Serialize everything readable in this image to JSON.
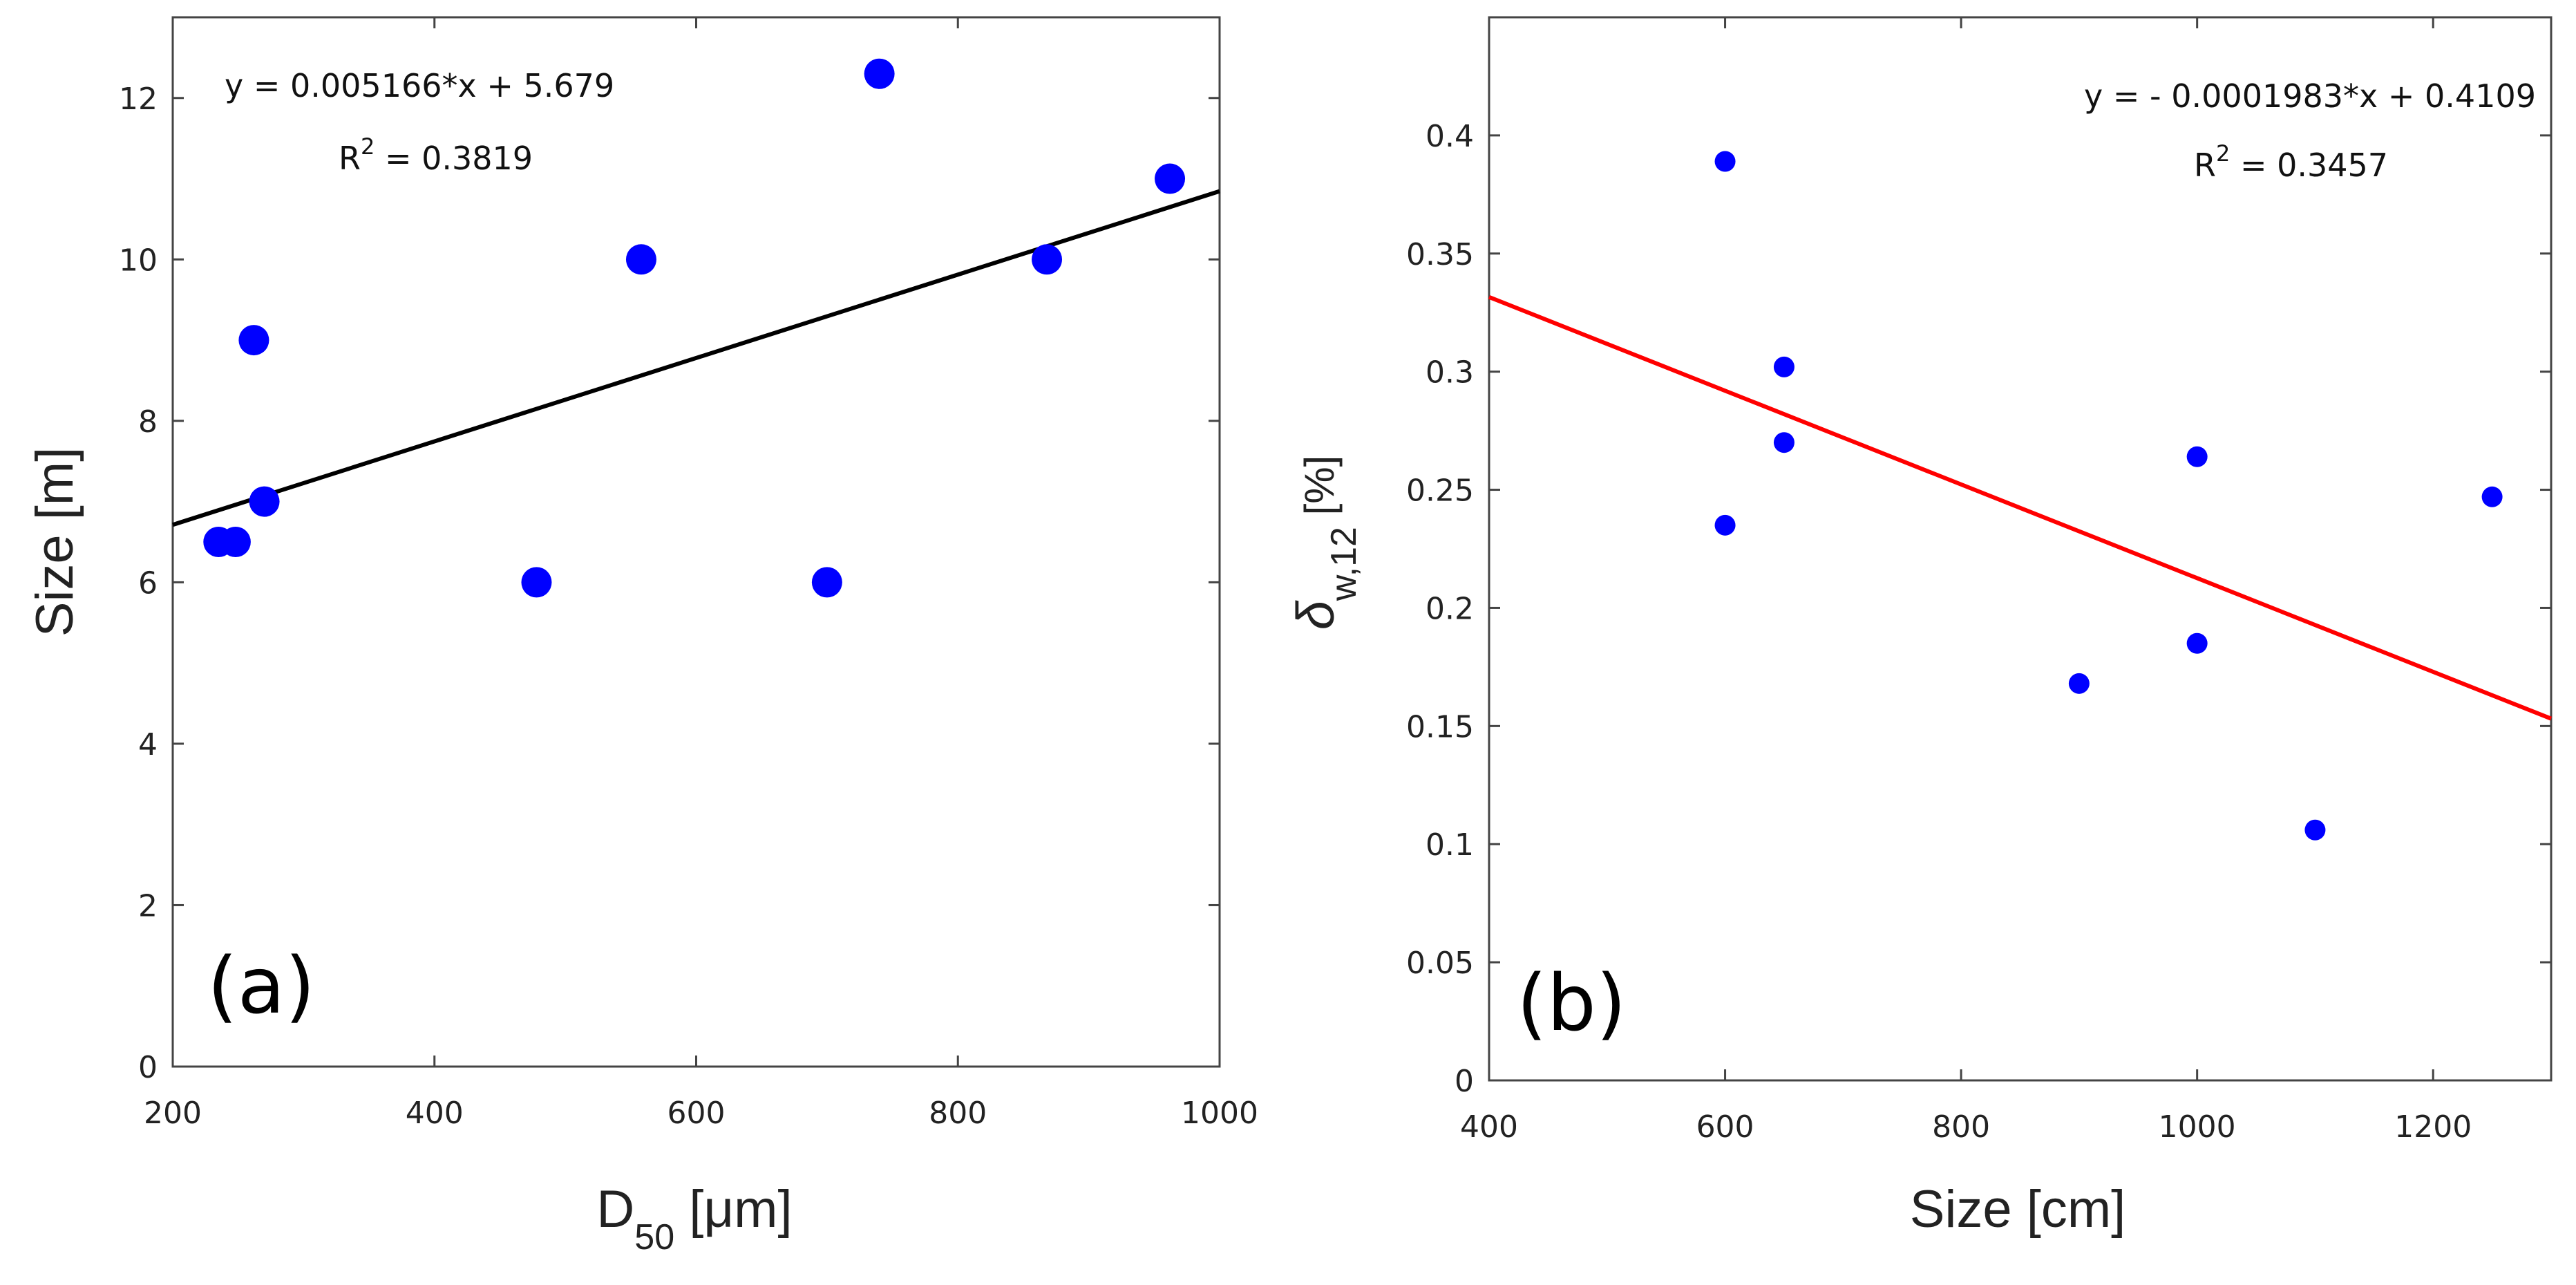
{
  "chart_data": [
    {
      "type": "scatter",
      "panel_label": "(a)",
      "xlabel": "D",
      "xlabel_sub": "50",
      "xlabel_unit": " [μm]",
      "ylabel": "Size [m]",
      "xlim": [
        200,
        1000
      ],
      "ylim": [
        0,
        13
      ],
      "xticks": [
        200,
        400,
        600,
        800,
        1000
      ],
      "yticks": [
        0,
        2,
        4,
        6,
        8,
        10,
        12
      ],
      "points": [
        {
          "x": 235,
          "y": 6.5
        },
        {
          "x": 248,
          "y": 6.5
        },
        {
          "x": 262,
          "y": 9.0
        },
        {
          "x": 270,
          "y": 7.0
        },
        {
          "x": 478,
          "y": 6.0
        },
        {
          "x": 558,
          "y": 10.0
        },
        {
          "x": 700,
          "y": 6.0
        },
        {
          "x": 740,
          "y": 12.3
        },
        {
          "x": 868,
          "y": 10.0
        },
        {
          "x": 962,
          "y": 11.0
        }
      ],
      "fit": {
        "slope": 0.005166,
        "intercept": 5.679,
        "color": "#000000"
      },
      "equation": "y = 0.005166*x + 5.679",
      "r2_label": "R",
      "r2_sup": "2",
      "r2_value": " = 0.3819",
      "marker_color": "#0000ff",
      "grid": false
    },
    {
      "type": "scatter",
      "panel_label": "(b)",
      "xlabel": "Size [cm]",
      "ylabel_symbol": "δ",
      "ylabel_sub": "w,12",
      "ylabel_unit": " [%]",
      "xlim": [
        400,
        1300
      ],
      "ylim": [
        0,
        0.45
      ],
      "xticks": [
        400,
        600,
        800,
        1000,
        1200
      ],
      "yticks": [
        0,
        0.05,
        0.1,
        0.15,
        0.2,
        0.25,
        0.3,
        0.35,
        0.4
      ],
      "ytick_labels": [
        "0",
        "0.05",
        "0.1",
        "0.15",
        "0.2",
        "0.25",
        "0.3",
        "0.35",
        "0.4"
      ],
      "points": [
        {
          "x": 600,
          "y": 0.389
        },
        {
          "x": 600,
          "y": 0.235
        },
        {
          "x": 650,
          "y": 0.302
        },
        {
          "x": 650,
          "y": 0.27
        },
        {
          "x": 900,
          "y": 0.168
        },
        {
          "x": 1000,
          "y": 0.264
        },
        {
          "x": 1000,
          "y": 0.185
        },
        {
          "x": 1100,
          "y": 0.106
        },
        {
          "x": 1250,
          "y": 0.247
        }
      ],
      "fit": {
        "slope": -0.0001983,
        "intercept": 0.4109,
        "color": "#ff0000"
      },
      "equation": "y = - 0.0001983*x + 0.4109",
      "r2_label": "R",
      "r2_sup": "2",
      "r2_value": " = 0.3457",
      "marker_color": "#0000ff",
      "grid": false
    }
  ]
}
